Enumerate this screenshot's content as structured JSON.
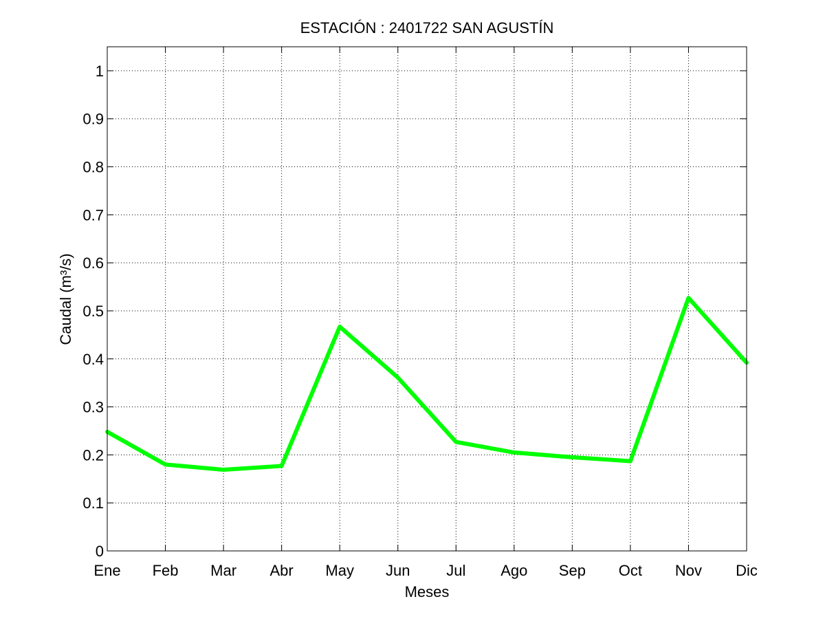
{
  "chart_data": {
    "type": "line",
    "title": "ESTACIÓN :  2401722  SAN AGUSTÍN",
    "xlabel": "Meses",
    "ylabel": "Caudal (m³/s)",
    "categories": [
      "Ene",
      "Feb",
      "Mar",
      "Abr",
      "May",
      "Jun",
      "Jul",
      "Ago",
      "Sep",
      "Oct",
      "Nov",
      "Dic"
    ],
    "series": [
      {
        "values": [
          0.248,
          0.18,
          0.169,
          0.177,
          0.467,
          0.361,
          0.227,
          0.205,
          0.195,
          0.187,
          0.527,
          0.392
        ],
        "color": "#00ff00"
      }
    ],
    "ylim": [
      0,
      1.05
    ],
    "yticks": [
      0,
      0.1,
      0.2,
      0.3,
      0.4,
      0.5,
      0.6,
      0.7,
      0.8,
      0.9,
      1
    ],
    "ytick_labels": [
      "0",
      "0.1",
      "0.2",
      "0.3",
      "0.4",
      "0.5",
      "0.6",
      "0.7",
      "0.8",
      "0.9",
      "1"
    ],
    "grid": true,
    "legend": false
  }
}
